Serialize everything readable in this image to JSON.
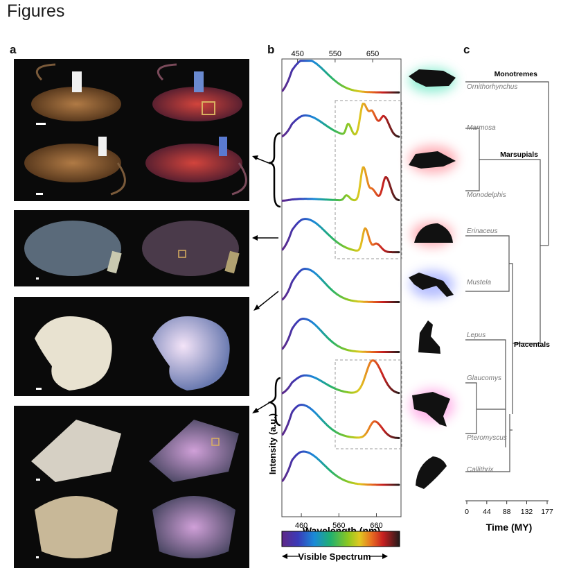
{
  "heading": "Figures",
  "panels": {
    "a": "a",
    "b": "b",
    "c": "c"
  },
  "chart_data": {
    "type": "line",
    "xlabel": "Wavelength (nm)",
    "ylabel": "Intensity (a.u.)",
    "x_top_ticks": [
      "450",
      "550",
      "650"
    ],
    "x_bottom_ticks": [
      "460",
      "560",
      "660"
    ],
    "xlim": [
      410,
      720
    ],
    "spectrum_label": "Visible Spectrum",
    "series": [
      {
        "peaks": [
          [
            470,
            1.0,
            55
          ]
        ],
        "tail": 0.1
      },
      {
        "peaks": [
          [
            470,
            0.65,
            50
          ],
          [
            585,
            0.35,
            8
          ],
          [
            625,
            1.0,
            12
          ],
          [
            650,
            0.65,
            12
          ],
          [
            680,
            0.6,
            14
          ]
        ],
        "tail": 0.05
      },
      {
        "peaks": [
          [
            470,
            0.05,
            50
          ],
          [
            580,
            0.15,
            8
          ],
          [
            625,
            1.0,
            10
          ],
          [
            650,
            0.3,
            10
          ],
          [
            685,
            0.7,
            12
          ]
        ],
        "tail": 0.02
      },
      {
        "peaks": [
          [
            470,
            1.0,
            55
          ],
          [
            630,
            0.7,
            10
          ],
          [
            660,
            0.25,
            12
          ]
        ],
        "tail": 0.05
      },
      {
        "peaks": [
          [
            470,
            1.0,
            50
          ]
        ],
        "tail": 0.01
      },
      {
        "peaks": [
          [
            465,
            1.0,
            50
          ]
        ],
        "tail": 0.01
      },
      {
        "peaks": [
          [
            470,
            0.55,
            50
          ],
          [
            650,
            1.0,
            25
          ]
        ],
        "tail": 0.05
      },
      {
        "peaks": [
          [
            460,
            1.0,
            50
          ],
          [
            655,
            0.5,
            20
          ]
        ],
        "tail": 0.05
      },
      {
        "peaks": [
          [
            465,
            1.0,
            55
          ]
        ],
        "tail": 0.02
      }
    ]
  },
  "tree": {
    "xlabel": "Time (MY)",
    "ticks": [
      "0",
      "44",
      "88",
      "132",
      "177"
    ],
    "max_time": 177,
    "taxa": [
      "Ornithorhynchus",
      "Marmosa",
      "Monodelphis",
      "Erinaceus",
      "Mustela",
      "Lepus",
      "Glaucomys",
      "Pteromyscus",
      "Callithrix"
    ],
    "clades": [
      "Monotremes",
      "Marsupials",
      "Placentals"
    ]
  }
}
